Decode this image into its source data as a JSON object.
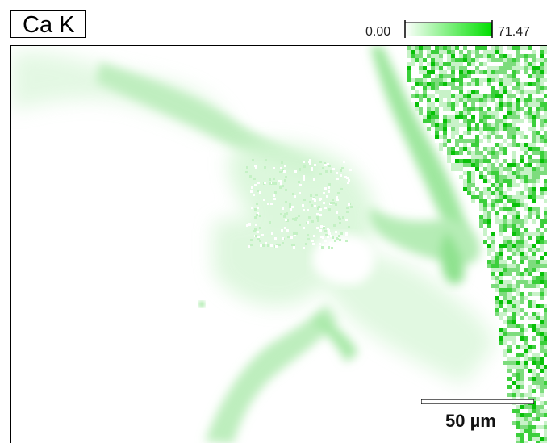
{
  "element_label": "Ca K",
  "scale": {
    "min": "0.00",
    "max": "71.47",
    "color_low": "#ffffff",
    "color_high": "#00e000"
  },
  "scalebar": {
    "label": "50 µm"
  },
  "colors": {
    "map_background": "#ffffff",
    "signal": "#2ad42a",
    "frame": "#000000"
  }
}
